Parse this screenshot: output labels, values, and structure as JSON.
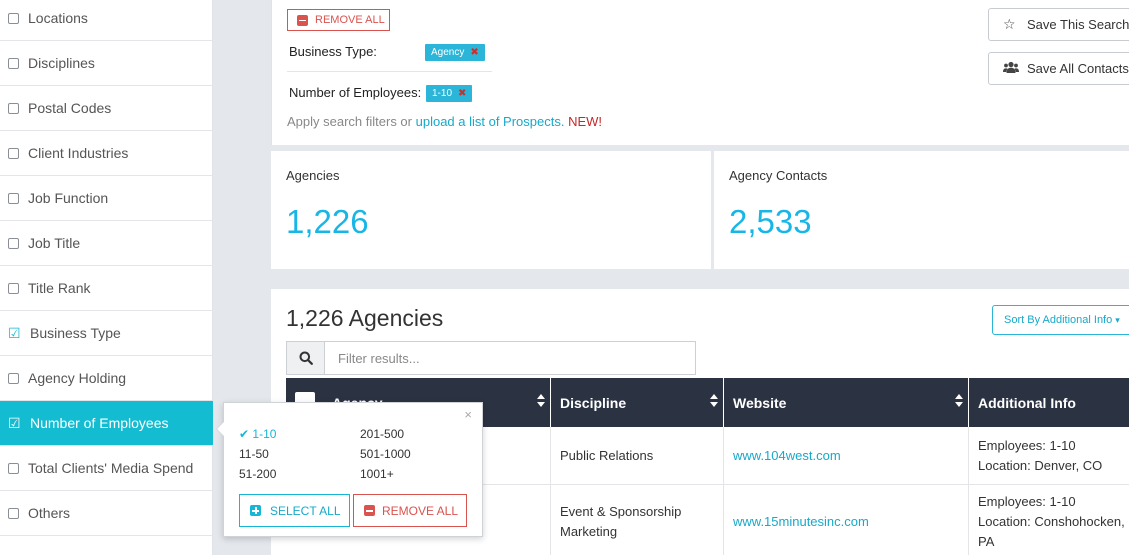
{
  "sidebar": {
    "items": [
      {
        "label": "Locations",
        "checked": false,
        "active": false
      },
      {
        "label": "Disciplines",
        "checked": false,
        "active": false
      },
      {
        "label": "Postal Codes",
        "checked": false,
        "active": false
      },
      {
        "label": "Client Industries",
        "checked": false,
        "active": false
      },
      {
        "label": "Job Function",
        "checked": false,
        "active": false
      },
      {
        "label": "Job Title",
        "checked": false,
        "active": false
      },
      {
        "label": "Title Rank",
        "checked": false,
        "active": false
      },
      {
        "label": "Business Type",
        "checked": true,
        "active": false
      },
      {
        "label": "Agency Holding",
        "checked": false,
        "active": false
      },
      {
        "label": "Number of Employees",
        "checked": true,
        "active": true
      },
      {
        "label": "Total Clients' Media Spend",
        "checked": false,
        "active": false
      },
      {
        "label": "Others",
        "checked": false,
        "active": false
      }
    ]
  },
  "filters": {
    "remove_all_label": "REMOVE ALL",
    "business_type_label": "Business Type:",
    "business_type_tag": "Agency",
    "employees_label": "Number of Employees:",
    "employees_tag": "1-10",
    "apply_text": "Apply search filters or ",
    "apply_link": "upload a list of Prospects.",
    "apply_new": "NEW!"
  },
  "actions": {
    "save_search": "Save This Search",
    "save_contacts": "Save All Contacts"
  },
  "stats": {
    "agencies_label": "Agencies",
    "agencies_value": "1,226",
    "contacts_label": "Agency Contacts",
    "contacts_value": "2,533"
  },
  "results": {
    "title": "1,226 Agencies",
    "sort_label": "Sort By Additional Info",
    "filter_placeholder": "Filter results...",
    "columns": {
      "agency": "Agency",
      "discipline": "Discipline",
      "website": "Website",
      "additional": "Additional Info"
    },
    "rows": [
      {
        "discipline": "Public Relations",
        "website": "www.104west.com",
        "info_1": "Employees: 1-10",
        "info_2": "Location: Denver, CO"
      },
      {
        "discipline": "Event & Sponsorship Marketing",
        "website": "www.15minutesinc.com",
        "info_1": "Employees: 1-10",
        "info_2": "Location: Conshohocken, PA"
      }
    ]
  },
  "popup": {
    "options": [
      {
        "label": "1-10",
        "selected": true
      },
      {
        "label": "11-50",
        "selected": false
      },
      {
        "label": "51-200",
        "selected": false
      },
      {
        "label": "201-500",
        "selected": false
      },
      {
        "label": "501-1000",
        "selected": false
      },
      {
        "label": "1001+",
        "selected": false
      }
    ],
    "select_all": "SELECT ALL",
    "remove_all": "REMOVE ALL",
    "close": "×"
  },
  "colors": {
    "accent": "#14bcd2",
    "link": "#17a9c9",
    "danger": "#d9534f",
    "table_header": "#2b3242"
  }
}
